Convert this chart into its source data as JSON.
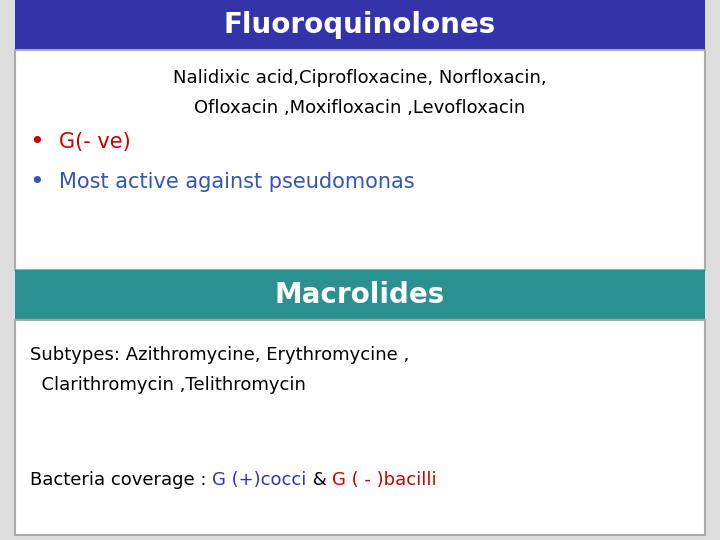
{
  "title1": "Fluoroquinolones",
  "title1_bg": "#3333aa",
  "title1_color": "#ffffff",
  "box1_line1": "Nalidixic acid,Ciprofloxacine, Norfloxacin,",
  "box1_line2": "Ofloxacin ,Moxifloxacin ,Levofloxacin",
  "box1_bullet1_text": "G(- ve)",
  "box1_bullet1_color": "#cc0000",
  "box1_bullet1_marker_color": "#cc0000",
  "box1_bullet2_text": "Most active against pseudomonas",
  "box1_bullet2_color": "#3355bb",
  "box1_bullet2_marker_color": "#3355bb",
  "box1_bg": "#ffffff",
  "box1_border": "#aaaaaa",
  "title2": "Macrolides",
  "title2_bg": "#2a9090",
  "title2_color": "#ffffff",
  "box2_line1": "Subtypes: Azithromycine, Erythromycine ,",
  "box2_line2": "  Clarithromycin ,Telithromycin",
  "box2_bacteria_prefix": "Bacteria coverage : ",
  "box2_bacteria_part1": "G (+)cocci",
  "box2_bacteria_part1_color": "#3333bb",
  "box2_bacteria_and": " & ",
  "box2_bacteria_part2": "G ( - )bacilli",
  "box2_bacteria_part2_color": "#cc0000",
  "box2_bg": "#ffffff",
  "box2_border": "#aaaaaa",
  "background_color": "#dddddd",
  "text_color_black": "#000000",
  "font_size_title": 20,
  "font_size_body": 13,
  "font_size_bullet": 14
}
